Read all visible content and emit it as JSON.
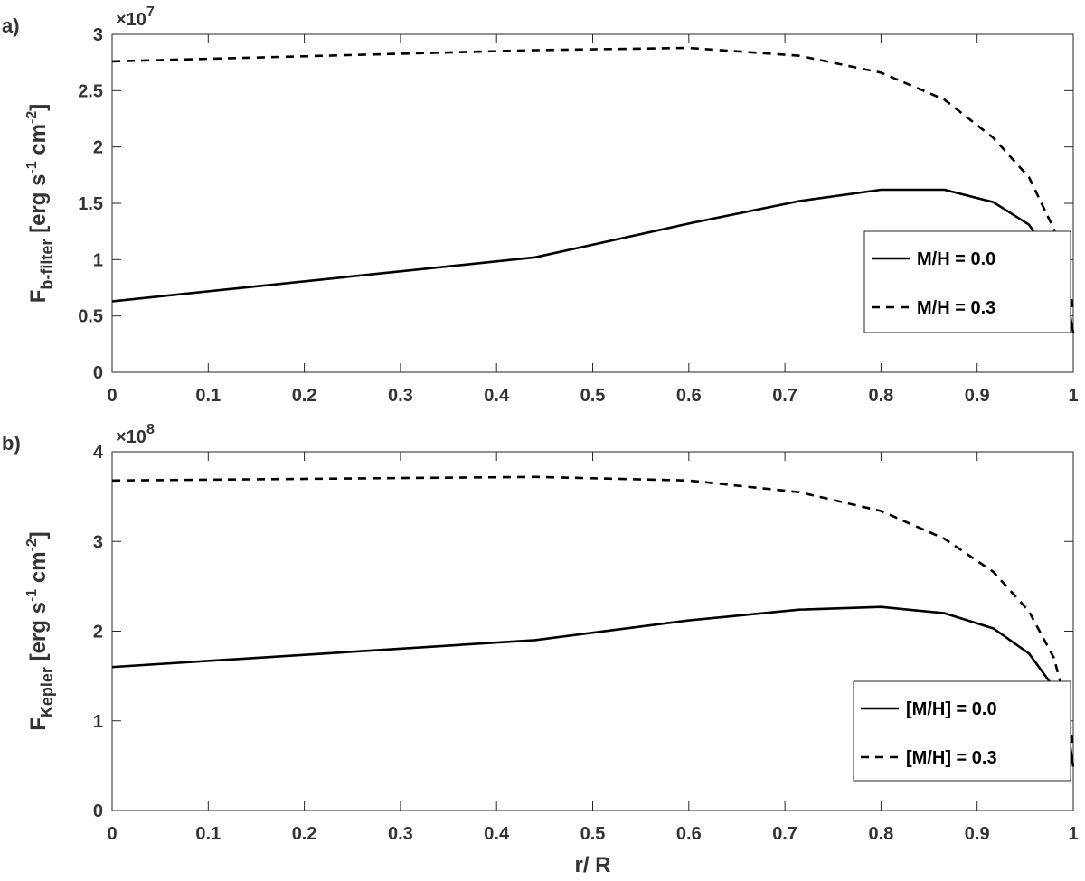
{
  "chart_data": [
    {
      "type": "line",
      "panel_label": "a)",
      "ylabel_main": "F",
      "ylabel_sub": "b-filter",
      "ylabel_unit_parts": [
        "[erg s",
        "-1",
        " cm",
        "-2",
        "]"
      ],
      "exponent_base": "×10",
      "exponent_power": "7",
      "xlim": [
        0,
        1
      ],
      "ylim": [
        0,
        3
      ],
      "x_ticks": [
        "0",
        "0.1",
        "0.2",
        "0.3",
        "0.4",
        "0.5",
        "0.6",
        "0.7",
        "0.8",
        "0.9",
        "1"
      ],
      "y_ticks": [
        "0",
        "0.5",
        "1",
        "1.5",
        "2",
        "2.5",
        "3"
      ],
      "legend_position": "right",
      "series": [
        {
          "name": "M/H = 0.0",
          "style": "solid",
          "x": [
            0,
            0.44,
            0.6,
            0.715,
            0.8,
            0.866,
            0.917,
            0.954,
            0.98,
            0.995,
            1.0
          ],
          "y": [
            0.63,
            1.02,
            1.32,
            1.52,
            1.62,
            1.62,
            1.51,
            1.31,
            1.0,
            0.58,
            0.35
          ]
        },
        {
          "name": "M/H = 0.3",
          "style": "dashed",
          "x": [
            0,
            0.44,
            0.6,
            0.715,
            0.8,
            0.866,
            0.917,
            0.954,
            0.98,
            0.995,
            1.0
          ],
          "y": [
            2.76,
            2.86,
            2.88,
            2.81,
            2.66,
            2.42,
            2.08,
            1.73,
            1.27,
            0.8,
            0.55
          ]
        }
      ]
    },
    {
      "type": "line",
      "panel_label": "b)",
      "ylabel_main": "F",
      "ylabel_sub": "Kepler",
      "ylabel_unit_parts": [
        "[erg s",
        "-1",
        " cm",
        "-2",
        "]"
      ],
      "exponent_base": "×10",
      "exponent_power": "8",
      "xlabel": "r/ R",
      "xlim": [
        0,
        1
      ],
      "ylim": [
        0,
        4
      ],
      "x_ticks": [
        "0",
        "0.1",
        "0.2",
        "0.3",
        "0.4",
        "0.5",
        "0.6",
        "0.7",
        "0.8",
        "0.9",
        "1"
      ],
      "y_ticks": [
        "0",
        "1",
        "2",
        "3",
        "4"
      ],
      "legend_position": "bottom-right",
      "series": [
        {
          "name": "[M/H] = 0.0",
          "style": "solid",
          "x": [
            0,
            0.44,
            0.6,
            0.715,
            0.8,
            0.866,
            0.917,
            0.954,
            0.98,
            0.995,
            1.0
          ],
          "y": [
            1.6,
            1.9,
            2.12,
            2.24,
            2.27,
            2.2,
            2.03,
            1.75,
            1.37,
            0.85,
            0.49
          ]
        },
        {
          "name": "[M/H] = 0.3",
          "style": "dashed",
          "x": [
            0,
            0.44,
            0.6,
            0.715,
            0.8,
            0.866,
            0.917,
            0.954,
            0.98,
            0.995,
            1.0
          ],
          "y": [
            3.68,
            3.72,
            3.68,
            3.55,
            3.34,
            3.03,
            2.66,
            2.22,
            1.7,
            1.08,
            0.7
          ]
        }
      ]
    }
  ]
}
